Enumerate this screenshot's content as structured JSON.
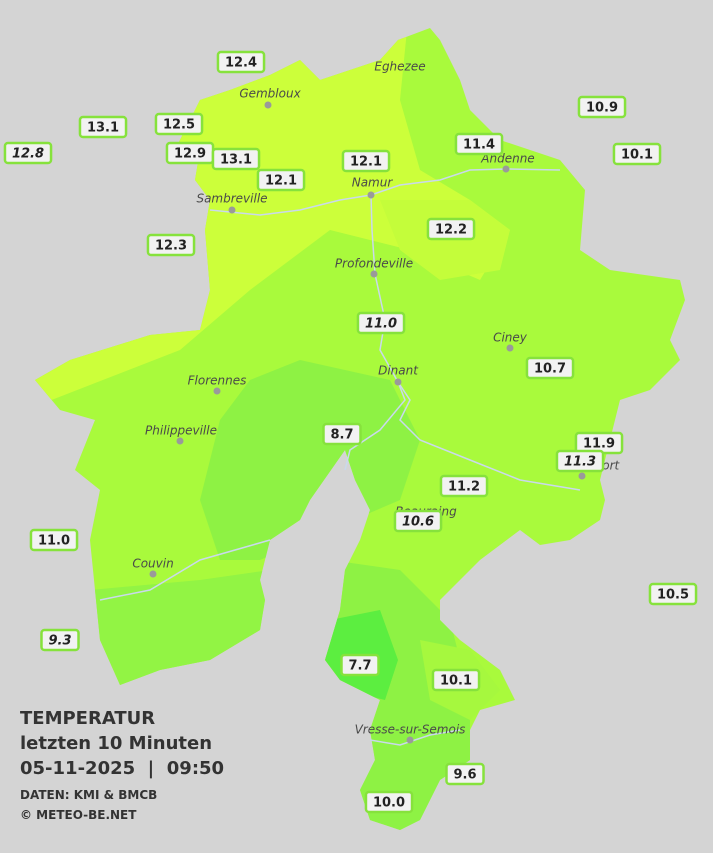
{
  "legend": {
    "title": "TEMPERATUR",
    "subtitle": "letzten 10 Minuten",
    "timestamp": "05-11-2025  |  09:50",
    "source": "DATEN: KMI & BMCB",
    "copyright": "© METEO-BE.NET"
  },
  "cities": [
    {
      "label": "Eghezee"
    },
    {
      "label": "Gembloux"
    },
    {
      "label": "Andenne"
    },
    {
      "label": "Namur"
    },
    {
      "label": "Sambreville"
    },
    {
      "label": "Profondeville"
    },
    {
      "label": "Ciney"
    },
    {
      "label": "Dinant"
    },
    {
      "label": "Florennes"
    },
    {
      "label": "Philippeville"
    },
    {
      "label": "Rochefort"
    },
    {
      "label": "Beauraing"
    },
    {
      "label": "Couvin"
    },
    {
      "label": "Vresse-sur-Semois"
    }
  ],
  "stations": [
    {
      "temp": "12.4"
    },
    {
      "temp": "13.1"
    },
    {
      "temp": "12.5"
    },
    {
      "temp": "12.8",
      "italic": true
    },
    {
      "temp": "12.9"
    },
    {
      "temp": "13.1"
    },
    {
      "temp": "12.1"
    },
    {
      "temp": "12.1"
    },
    {
      "temp": "11.4"
    },
    {
      "temp": "10.9"
    },
    {
      "temp": "10.1"
    },
    {
      "temp": "12.3"
    },
    {
      "temp": "12.2"
    },
    {
      "temp": "11.0",
      "italic": true
    },
    {
      "temp": "10.7"
    },
    {
      "temp": "8.7"
    },
    {
      "temp": "11.9"
    },
    {
      "temp": "11.3",
      "italic": true
    },
    {
      "temp": "11.2"
    },
    {
      "temp": "10.6",
      "italic": true
    },
    {
      "temp": "11.0"
    },
    {
      "temp": "10.5"
    },
    {
      "temp": "9.3",
      "italic": true
    },
    {
      "temp": "7.7"
    },
    {
      "temp": "10.1"
    },
    {
      "temp": "9.6"
    },
    {
      "temp": "10.0"
    }
  ]
}
